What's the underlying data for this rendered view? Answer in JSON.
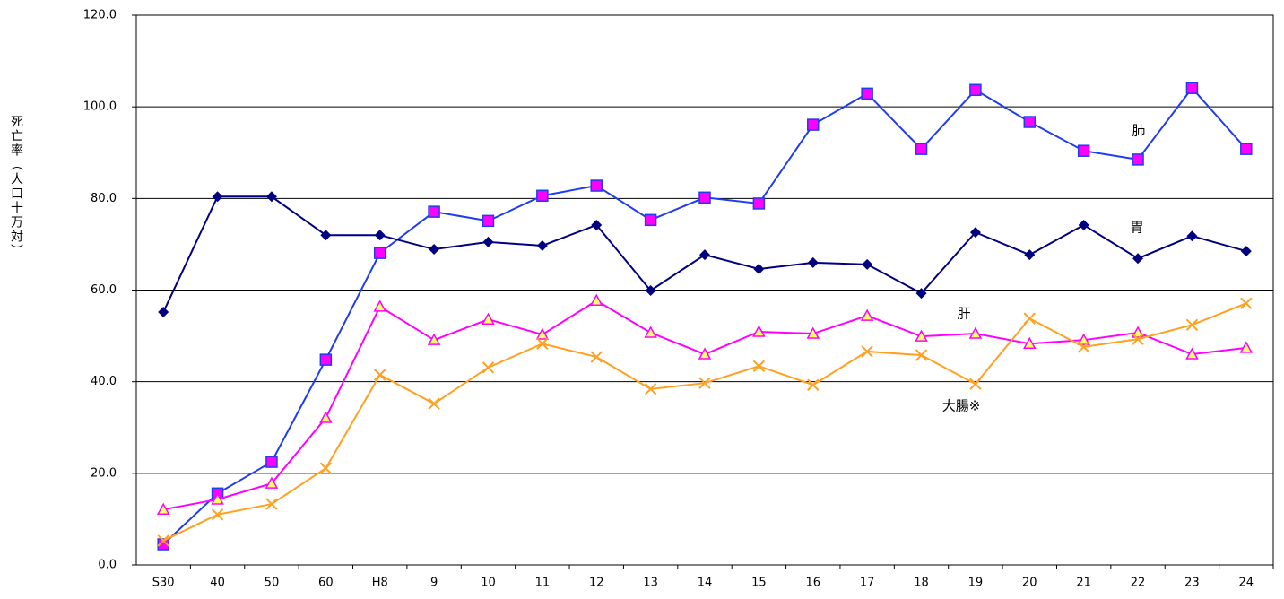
{
  "chart_data": {
    "type": "line",
    "y_label": "死亡率（人口十万対）",
    "categories": [
      "S30",
      "40",
      "50",
      "60",
      "H8",
      "9",
      "10",
      "11",
      "12",
      "13",
      "14",
      "15",
      "16",
      "17",
      "18",
      "19",
      "20",
      "21",
      "22",
      "23",
      "24"
    ],
    "ylim": [
      0,
      120
    ],
    "yticks": [
      {
        "value": 0,
        "label": "0.0"
      },
      {
        "value": 20,
        "label": "20.0"
      },
      {
        "value": 40,
        "label": "40.0"
      },
      {
        "value": 60,
        "label": "60.0"
      },
      {
        "value": 80,
        "label": "80.0"
      },
      {
        "value": 100,
        "label": "100.0"
      },
      {
        "value": 120,
        "label": "120.0"
      }
    ],
    "grid": true,
    "series": [
      {
        "name": "肺",
        "color": "#1f3cf0",
        "marker": "square",
        "marker_color": "#ff00ff",
        "values": [
          4.5,
          15.6,
          22.5,
          44.8,
          68.1,
          77.1,
          75.1,
          80.6,
          82.8,
          75.3,
          80.2,
          78.9,
          96.1,
          102.9,
          90.8,
          103.7,
          96.7,
          90.4,
          88.5,
          104.1,
          90.8
        ]
      },
      {
        "name": "胃",
        "color": "#000080",
        "marker": "diamond",
        "marker_color": "#000080",
        "values": [
          55.2,
          80.4,
          80.4,
          72.0,
          72.0,
          68.9,
          70.5,
          69.7,
          74.2,
          59.9,
          67.7,
          64.6,
          66.0,
          65.6,
          59.3,
          72.6,
          67.7,
          74.2,
          66.9,
          71.8,
          68.5
        ]
      },
      {
        "name": "肝",
        "color": "#ff00ff",
        "marker": "triangle",
        "marker_color": "#ffff66",
        "values": [
          12.1,
          14.3,
          17.8,
          32.1,
          56.4,
          49.1,
          53.6,
          50.3,
          57.7,
          50.7,
          46.0,
          50.9,
          50.5,
          54.4,
          49.9,
          50.5,
          48.3,
          49.1,
          50.7,
          46.0,
          47.4
        ]
      },
      {
        "name": "大腸※",
        "color": "#ffa020",
        "marker": "x",
        "marker_color": "#ffa020",
        "values": [
          5.3,
          11.0,
          13.3,
          21.1,
          41.5,
          35.2,
          43.1,
          48.3,
          45.4,
          38.4,
          39.7,
          43.4,
          39.3,
          46.6,
          45.8,
          39.5,
          53.8,
          47.6,
          49.3,
          52.4,
          57.1
        ]
      }
    ]
  }
}
